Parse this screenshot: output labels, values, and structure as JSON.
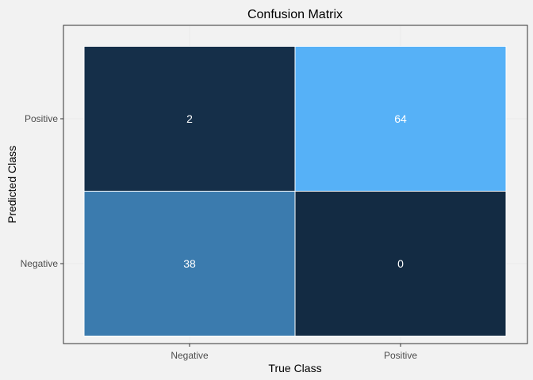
{
  "chart_data": {
    "type": "heatmap",
    "title": "Confusion Matrix",
    "xlabel": "True Class",
    "ylabel": "Predicted Class",
    "x_categories": [
      "Negative",
      "Positive"
    ],
    "y_categories": [
      "Negative",
      "Positive"
    ],
    "cells": [
      {
        "x": "Negative",
        "y": "Positive",
        "value": 2
      },
      {
        "x": "Positive",
        "y": "Positive",
        "value": 64
      },
      {
        "x": "Negative",
        "y": "Negative",
        "value": 38
      },
      {
        "x": "Positive",
        "y": "Negative",
        "value": 0
      }
    ],
    "color_scale": {
      "low": "#132b43",
      "high": "#56b1f7"
    },
    "value_range": [
      0,
      64
    ],
    "grid": true,
    "legend": "none"
  },
  "colors": {
    "background": "#f2f2f2",
    "gridline": "#ebebeb",
    "panel_border": "#333333",
    "cell_label": "#ffffff",
    "text": "#000000",
    "tick_text": "#4d4d4d"
  }
}
